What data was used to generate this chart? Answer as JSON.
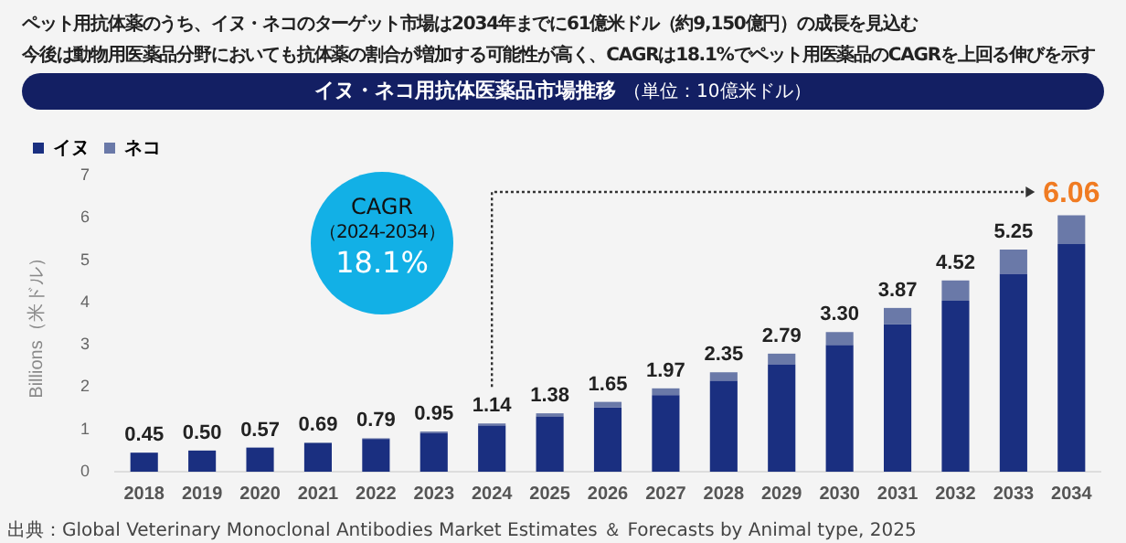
{
  "chart_data": {
    "type": "bar",
    "stacked": true,
    "title": "イヌ・ネコ用抗体医薬品市場推移",
    "subtitle": "（単位：10億米ドル）",
    "ylabel": "Billions（米ドル）",
    "categories": [
      "2018",
      "2019",
      "2020",
      "2021",
      "2022",
      "2023",
      "2024",
      "2025",
      "2026",
      "2027",
      "2028",
      "2029",
      "2030",
      "2031",
      "2032",
      "2033",
      "2034"
    ],
    "series": [
      {
        "name": "イヌ",
        "color": "#1a2f80",
        "values": [
          0.45,
          0.5,
          0.57,
          0.67,
          0.77,
          0.92,
          1.09,
          1.3,
          1.52,
          1.81,
          2.15,
          2.54,
          2.99,
          3.48,
          4.04,
          4.68,
          5.38
        ]
      },
      {
        "name": "ネコ",
        "color": "#6a79a8",
        "values": [
          null,
          null,
          null,
          0.02,
          0.02,
          0.03,
          0.05,
          0.08,
          0.13,
          0.16,
          0.2,
          0.25,
          0.31,
          0.39,
          0.48,
          0.57,
          0.68
        ]
      }
    ],
    "totals": [
      "0.45",
      "0.50",
      "0.57",
      "0.69",
      "0.79",
      "0.95",
      "1.14",
      "1.38",
      "1.65",
      "1.97",
      "2.35",
      "2.79",
      "3.30",
      "3.87",
      "4.52",
      "5.25",
      "6.06"
    ],
    "ylim": [
      0,
      7
    ],
    "yticks": [
      0,
      1,
      2,
      3,
      4,
      5,
      6,
      7
    ],
    "grid": false,
    "legend": "top left",
    "annotations": [
      "ペット用抗体薬のうち、イヌ・ネコのターゲット市場は2034年までに61億米ドル（約9,150億円）の成長を見込む",
      "今後は動物用医薬品分野においても抗体薬の割合が増加する可能性が高く、CAGRは18.1%でペット用医薬品のCAGRを上回る伸びを示す",
      "CAGR",
      "（2024-2034）",
      "18.1%",
      "出典：Global Veterinary Monoclonal Antibodies Market Estimates ＆ Forecasts by Animal type, 2025"
    ]
  }
}
